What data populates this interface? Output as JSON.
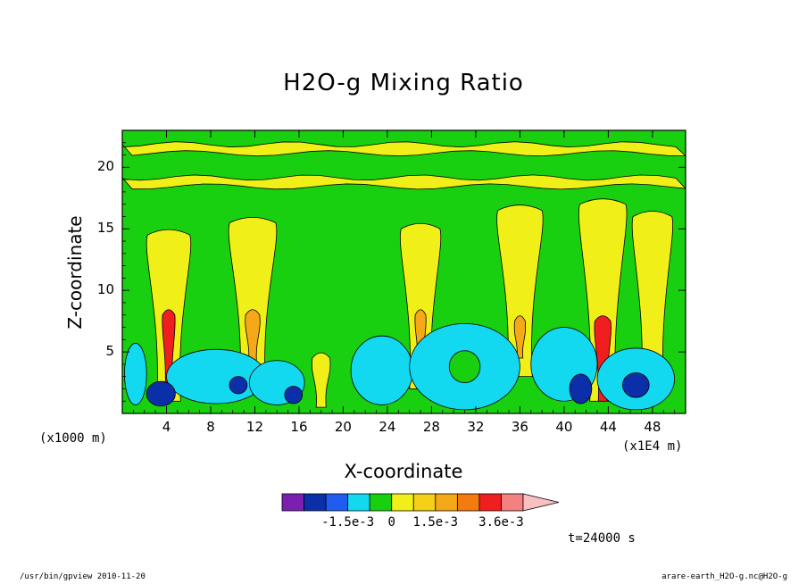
{
  "chart_data": {
    "type": "heatmap",
    "title": "H2O-g Mixing Ratio",
    "xlabel": "X-coordinate",
    "ylabel": "Z-coordinate",
    "x_unit_left": "(x1000 m)",
    "x_unit_right": "(x1E4 m)",
    "xlim": [
      0,
      51
    ],
    "ylim": [
      0,
      23
    ],
    "xticks": [
      "4",
      "8",
      "12",
      "16",
      "20",
      "24",
      "28",
      "32",
      "36",
      "40",
      "44",
      "48"
    ],
    "xtick_values": [
      4,
      8,
      12,
      16,
      20,
      24,
      28,
      32,
      36,
      40,
      44,
      48
    ],
    "yticks": [
      "5",
      "10",
      "15",
      "20"
    ],
    "ytick_values": [
      5,
      10,
      15,
      20
    ],
    "colorbar": {
      "colors": [
        "#7a1fb0",
        "#0a2fa8",
        "#1f5cf0",
        "#12d8f0",
        "#18d010",
        "#f0f018",
        "#f5cf18",
        "#f5a818",
        "#f57a10",
        "#f01e1e",
        "#f58080",
        "#f8c0c0"
      ],
      "labels": [
        "-1.5e-3",
        "0",
        "1.5e-3",
        "3.6e-3"
      ],
      "label_boundary_index": [
        3,
        5,
        7,
        10
      ]
    },
    "background_color": "#18d010",
    "features": [
      {
        "kind": "band",
        "z": 18.8,
        "level": 5
      },
      {
        "kind": "band",
        "z": 21.5,
        "level": 5
      },
      {
        "kind": "plume",
        "x": 4.2,
        "z0": 1.0,
        "z1": 14.5,
        "width": 2.4,
        "level": 5
      },
      {
        "kind": "plume",
        "x": 11.8,
        "z0": 2.0,
        "z1": 15.5,
        "width": 2.6,
        "level": 5
      },
      {
        "kind": "plume",
        "x": 27.0,
        "z0": 2.0,
        "z1": 15.0,
        "width": 2.2,
        "level": 5
      },
      {
        "kind": "plume",
        "x": 36.0,
        "z0": 3.0,
        "z1": 16.5,
        "width": 2.5,
        "level": 5
      },
      {
        "kind": "plume",
        "x": 43.5,
        "z0": 1.0,
        "z1": 17.0,
        "width": 2.6,
        "level": 5
      },
      {
        "kind": "plume",
        "x": 48.0,
        "z0": 2.0,
        "z1": 16.0,
        "width": 2.2,
        "level": 5
      },
      {
        "kind": "plume",
        "x": 18.0,
        "z0": 0.5,
        "z1": 4.5,
        "width": 1.0,
        "level": 5
      },
      {
        "kind": "core",
        "x": 4.2,
        "z0": 2.0,
        "z1": 8.0,
        "width": 0.7,
        "level": 9
      },
      {
        "kind": "core",
        "x": 11.8,
        "z0": 4.0,
        "z1": 8.0,
        "width": 0.8,
        "level": 7
      },
      {
        "kind": "core",
        "x": 27.0,
        "z0": 4.0,
        "z1": 8.0,
        "width": 0.6,
        "level": 7
      },
      {
        "kind": "core",
        "x": 36.0,
        "z0": 4.5,
        "z1": 7.5,
        "width": 0.6,
        "level": 7
      },
      {
        "kind": "core",
        "x": 43.5,
        "z0": 1.0,
        "z1": 7.5,
        "width": 0.9,
        "level": 9
      },
      {
        "kind": "blob",
        "x": 8.5,
        "z": 3.0,
        "rx": 4.5,
        "rz": 2.2,
        "level": 3
      },
      {
        "kind": "blob",
        "x": 14.0,
        "z": 2.5,
        "rx": 2.5,
        "rz": 1.8,
        "level": 3
      },
      {
        "kind": "blob",
        "x": 23.5,
        "z": 3.5,
        "rx": 2.8,
        "rz": 2.8,
        "level": 3
      },
      {
        "kind": "blob",
        "x": 31.0,
        "z": 3.8,
        "rx": 5.0,
        "rz": 3.5,
        "level": 3
      },
      {
        "kind": "blob",
        "x": 40.0,
        "z": 4.0,
        "rx": 3.0,
        "rz": 3.0,
        "level": 3
      },
      {
        "kind": "blob",
        "x": 46.5,
        "z": 2.8,
        "rx": 3.5,
        "rz": 2.5,
        "level": 3
      },
      {
        "kind": "blob",
        "x": 1.2,
        "z": 3.2,
        "rx": 1.0,
        "rz": 2.5,
        "level": 3
      },
      {
        "kind": "blob",
        "x": 3.5,
        "z": 1.6,
        "rx": 1.3,
        "rz": 1.0,
        "level": 1
      },
      {
        "kind": "blob",
        "x": 10.5,
        "z": 2.3,
        "rx": 0.8,
        "rz": 0.7,
        "level": 1
      },
      {
        "kind": "blob",
        "x": 15.5,
        "z": 1.5,
        "rx": 0.8,
        "rz": 0.7,
        "level": 1
      },
      {
        "kind": "blob",
        "x": 41.5,
        "z": 2.0,
        "rx": 1.0,
        "rz": 1.2,
        "level": 1
      },
      {
        "kind": "blob",
        "x": 46.5,
        "z": 2.3,
        "rx": 1.2,
        "rz": 1.0,
        "level": 1
      },
      {
        "kind": "blob",
        "x": 31.0,
        "z": 3.8,
        "rx": 1.4,
        "rz": 1.3,
        "level": 4
      }
    ]
  },
  "x_unit_left": "(x1000 m)",
  "x_unit_right": "(x1E4 m)",
  "time_label": "t=24000 s",
  "footer_left": "/usr/bin/gpview  2010-11-20",
  "footer_right": "arare-earth_H2O-g.nc@H2O-g"
}
